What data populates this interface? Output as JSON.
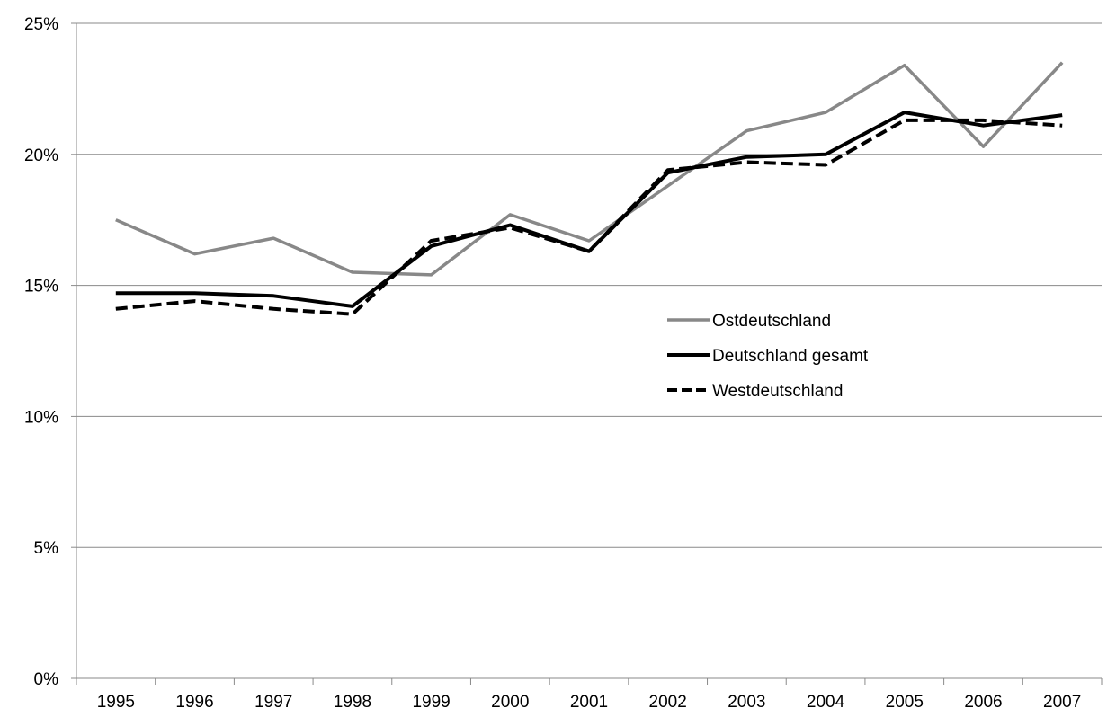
{
  "chart_data": {
    "type": "line",
    "title": "",
    "xlabel": "",
    "ylabel": "",
    "categories": [
      "1995",
      "1996",
      "1997",
      "1998",
      "1999",
      "2000",
      "2001",
      "2002",
      "2003",
      "2004",
      "2005",
      "2006",
      "2007"
    ],
    "y_ticks": [
      "0%",
      "5%",
      "10%",
      "15%",
      "20%",
      "25%"
    ],
    "ylim": [
      0,
      25
    ],
    "y_unit": "%",
    "grid": "horizontal",
    "legend_position": "center-right",
    "series": [
      {
        "name": "Ostdeutschland",
        "color": "#888888",
        "style": "solid",
        "values": [
          17.5,
          16.2,
          16.8,
          15.5,
          15.4,
          17.7,
          16.7,
          18.8,
          20.9,
          21.6,
          23.4,
          20.3,
          23.5
        ]
      },
      {
        "name": "Deutschland gesamt",
        "color": "#000000",
        "style": "solid",
        "values": [
          14.7,
          14.7,
          14.6,
          14.2,
          16.5,
          17.3,
          16.3,
          19.3,
          19.9,
          20.0,
          21.6,
          21.1,
          21.5
        ]
      },
      {
        "name": "Westdeutschland",
        "color": "#000000",
        "style": "dashed",
        "values": [
          14.1,
          14.4,
          14.1,
          13.9,
          16.7,
          17.2,
          16.3,
          19.4,
          19.7,
          19.6,
          21.3,
          21.3,
          21.1
        ]
      }
    ]
  }
}
